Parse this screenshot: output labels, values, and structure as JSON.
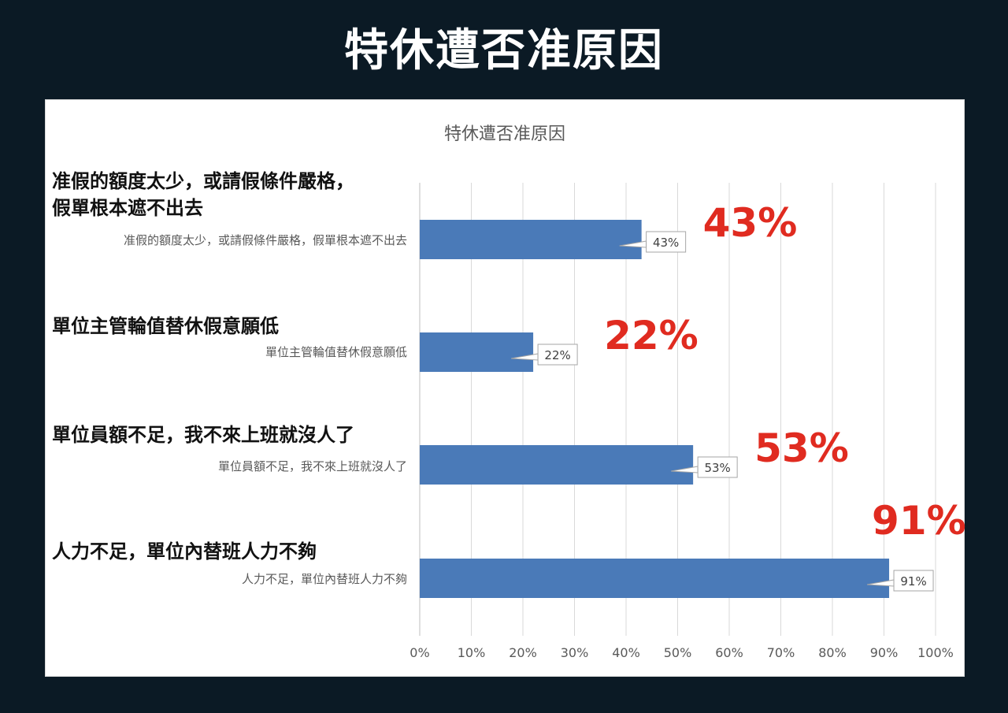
{
  "page_title": "特休遭否准原因",
  "chart_data": {
    "type": "bar",
    "orientation": "horizontal",
    "title": "特休遭否准原因",
    "categories": [
      "准假的額度太少，或請假條件嚴格，假單根本遮不出去",
      "單位主管輪值替休假意願低",
      "單位員額不足，我不來上班就沒人了",
      "人力不足，單位內替班人力不夠"
    ],
    "category_headings": [
      [
        "准假的額度太少，或請假條件嚴格，",
        "假單根本遮不出去"
      ],
      [
        "單位主管輪值替休假意願低"
      ],
      [
        "單位員額不足，我不來上班就沒人了"
      ],
      [
        "人力不足，單位內替班人力不夠"
      ]
    ],
    "values": [
      43,
      22,
      53,
      91
    ],
    "value_labels": [
      "43%",
      "22%",
      "53%",
      "91%"
    ],
    "highlight_labels": [
      "43%",
      "22%",
      "53%",
      "91%"
    ],
    "x_ticks": [
      "0%",
      "10%",
      "20%",
      "30%",
      "40%",
      "50%",
      "60%",
      "70%",
      "80%",
      "90%",
      "100%"
    ],
    "xlim": [
      0,
      100
    ],
    "grid": true,
    "bar_color": "#4a7ab8",
    "highlight_color": "#e02b20"
  }
}
